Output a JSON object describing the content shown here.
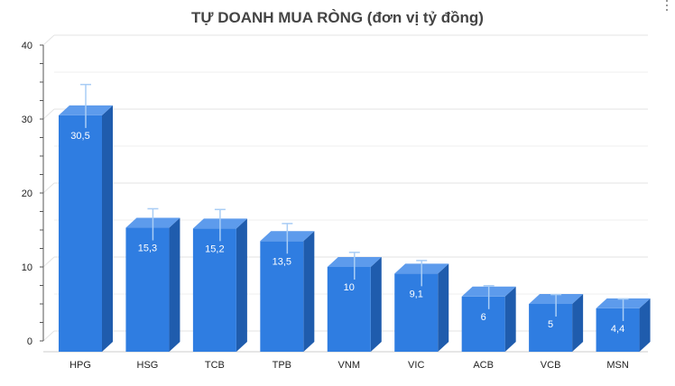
{
  "chart_data": {
    "type": "bar",
    "title": "TỰ DOANH MUA RÒNG (đơn vị tỷ đồng)",
    "xlabel": "",
    "ylabel": "",
    "categories": [
      "HPG",
      "HSG",
      "TCB",
      "TPB",
      "VNM",
      "VIC",
      "ACB",
      "VCB",
      "MSN"
    ],
    "values": [
      30.5,
      15.3,
      15.2,
      13.5,
      10,
      9.1,
      6,
      5,
      4.4
    ],
    "value_labels": [
      "30,5",
      "15,3",
      "15,2",
      "13,5",
      "10",
      "9,1",
      "6",
      "5",
      "4,4"
    ],
    "error_upper": [
      34,
      17.2,
      17.1,
      15.2,
      11.3,
      10.2,
      6.8,
      5.6,
      5
    ],
    "ylim": [
      0,
      40
    ],
    "yticks": [
      0,
      10,
      20,
      30,
      40
    ],
    "grid": true,
    "style": "3d",
    "colors": {
      "bar_front": "#2f7de1",
      "bar_side": "#1f5cad",
      "bar_top": "#5d9bec",
      "error_bar": "#a9cdf5",
      "grid": "#e3e3e3"
    }
  }
}
